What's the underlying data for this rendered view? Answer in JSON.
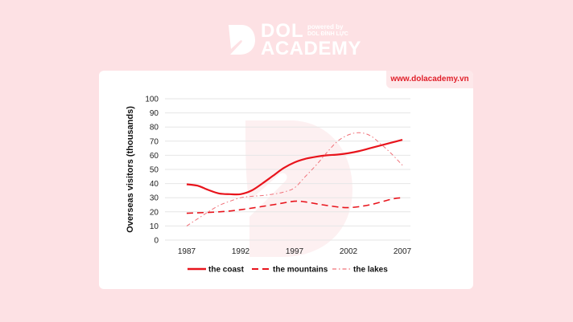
{
  "brand": {
    "name_line1": "DOL",
    "name_line2": "ACADEMY",
    "powered_by": "powered by",
    "powered_by_name": "DOL ĐÌNH LỰC",
    "website": "www.dolacademy.vn"
  },
  "colors": {
    "background": "#fde1e4",
    "accent": "#e8141c"
  },
  "chart_data": {
    "type": "line",
    "title": "",
    "xlabel": "",
    "ylabel": "Overseas visitors (thousands)",
    "xlim": [
      1987,
      2007
    ],
    "ylim": [
      0,
      100
    ],
    "x_ticks": [
      "1987",
      "1992",
      "1997",
      "2002",
      "2007"
    ],
    "y_ticks": [
      "0",
      "10",
      "20",
      "30",
      "40",
      "50",
      "60",
      "70",
      "80",
      "90",
      "100"
    ],
    "grid": true,
    "legend": "bottom",
    "series": [
      {
        "name": "the coast",
        "style": "solid",
        "color": "#e8141c",
        "x": [
          1987,
          1988,
          1989,
          1990,
          1991,
          1992,
          1993,
          1994,
          1995,
          1996,
          1997,
          1998,
          1999,
          2000,
          2001,
          2002,
          2003,
          2004,
          2005,
          2006,
          2007
        ],
        "y": [
          39.5,
          38.5,
          35.5,
          33,
          32.5,
          32.5,
          35,
          40,
          45.5,
          51,
          55,
          57.5,
          59,
          60,
          60.5,
          61.5,
          63,
          65,
          67,
          69,
          71
        ]
      },
      {
        "name": "the mountains",
        "style": "dashed",
        "color": "#e8141c",
        "x": [
          1987,
          1990,
          1992,
          1995,
          1997,
          1998,
          2000,
          2002,
          2004,
          2006,
          2007
        ],
        "y": [
          19,
          20,
          21.5,
          25,
          27.5,
          27,
          24.5,
          23,
          25,
          29,
          30
        ]
      },
      {
        "name": "the lakes",
        "style": "dashdot",
        "color": "#f07078",
        "x": [
          1987,
          1988,
          1989,
          1990,
          1991,
          1992,
          1993,
          1994,
          1995,
          1996,
          1997,
          1998,
          1999,
          2000,
          2001,
          2002,
          2003,
          2004,
          2005,
          2006,
          2007
        ],
        "y": [
          10,
          15,
          20,
          24.5,
          27.5,
          30,
          31,
          31.5,
          32.5,
          34,
          37,
          45,
          53,
          62,
          70,
          74.5,
          76,
          74,
          68,
          61,
          53
        ]
      }
    ]
  }
}
